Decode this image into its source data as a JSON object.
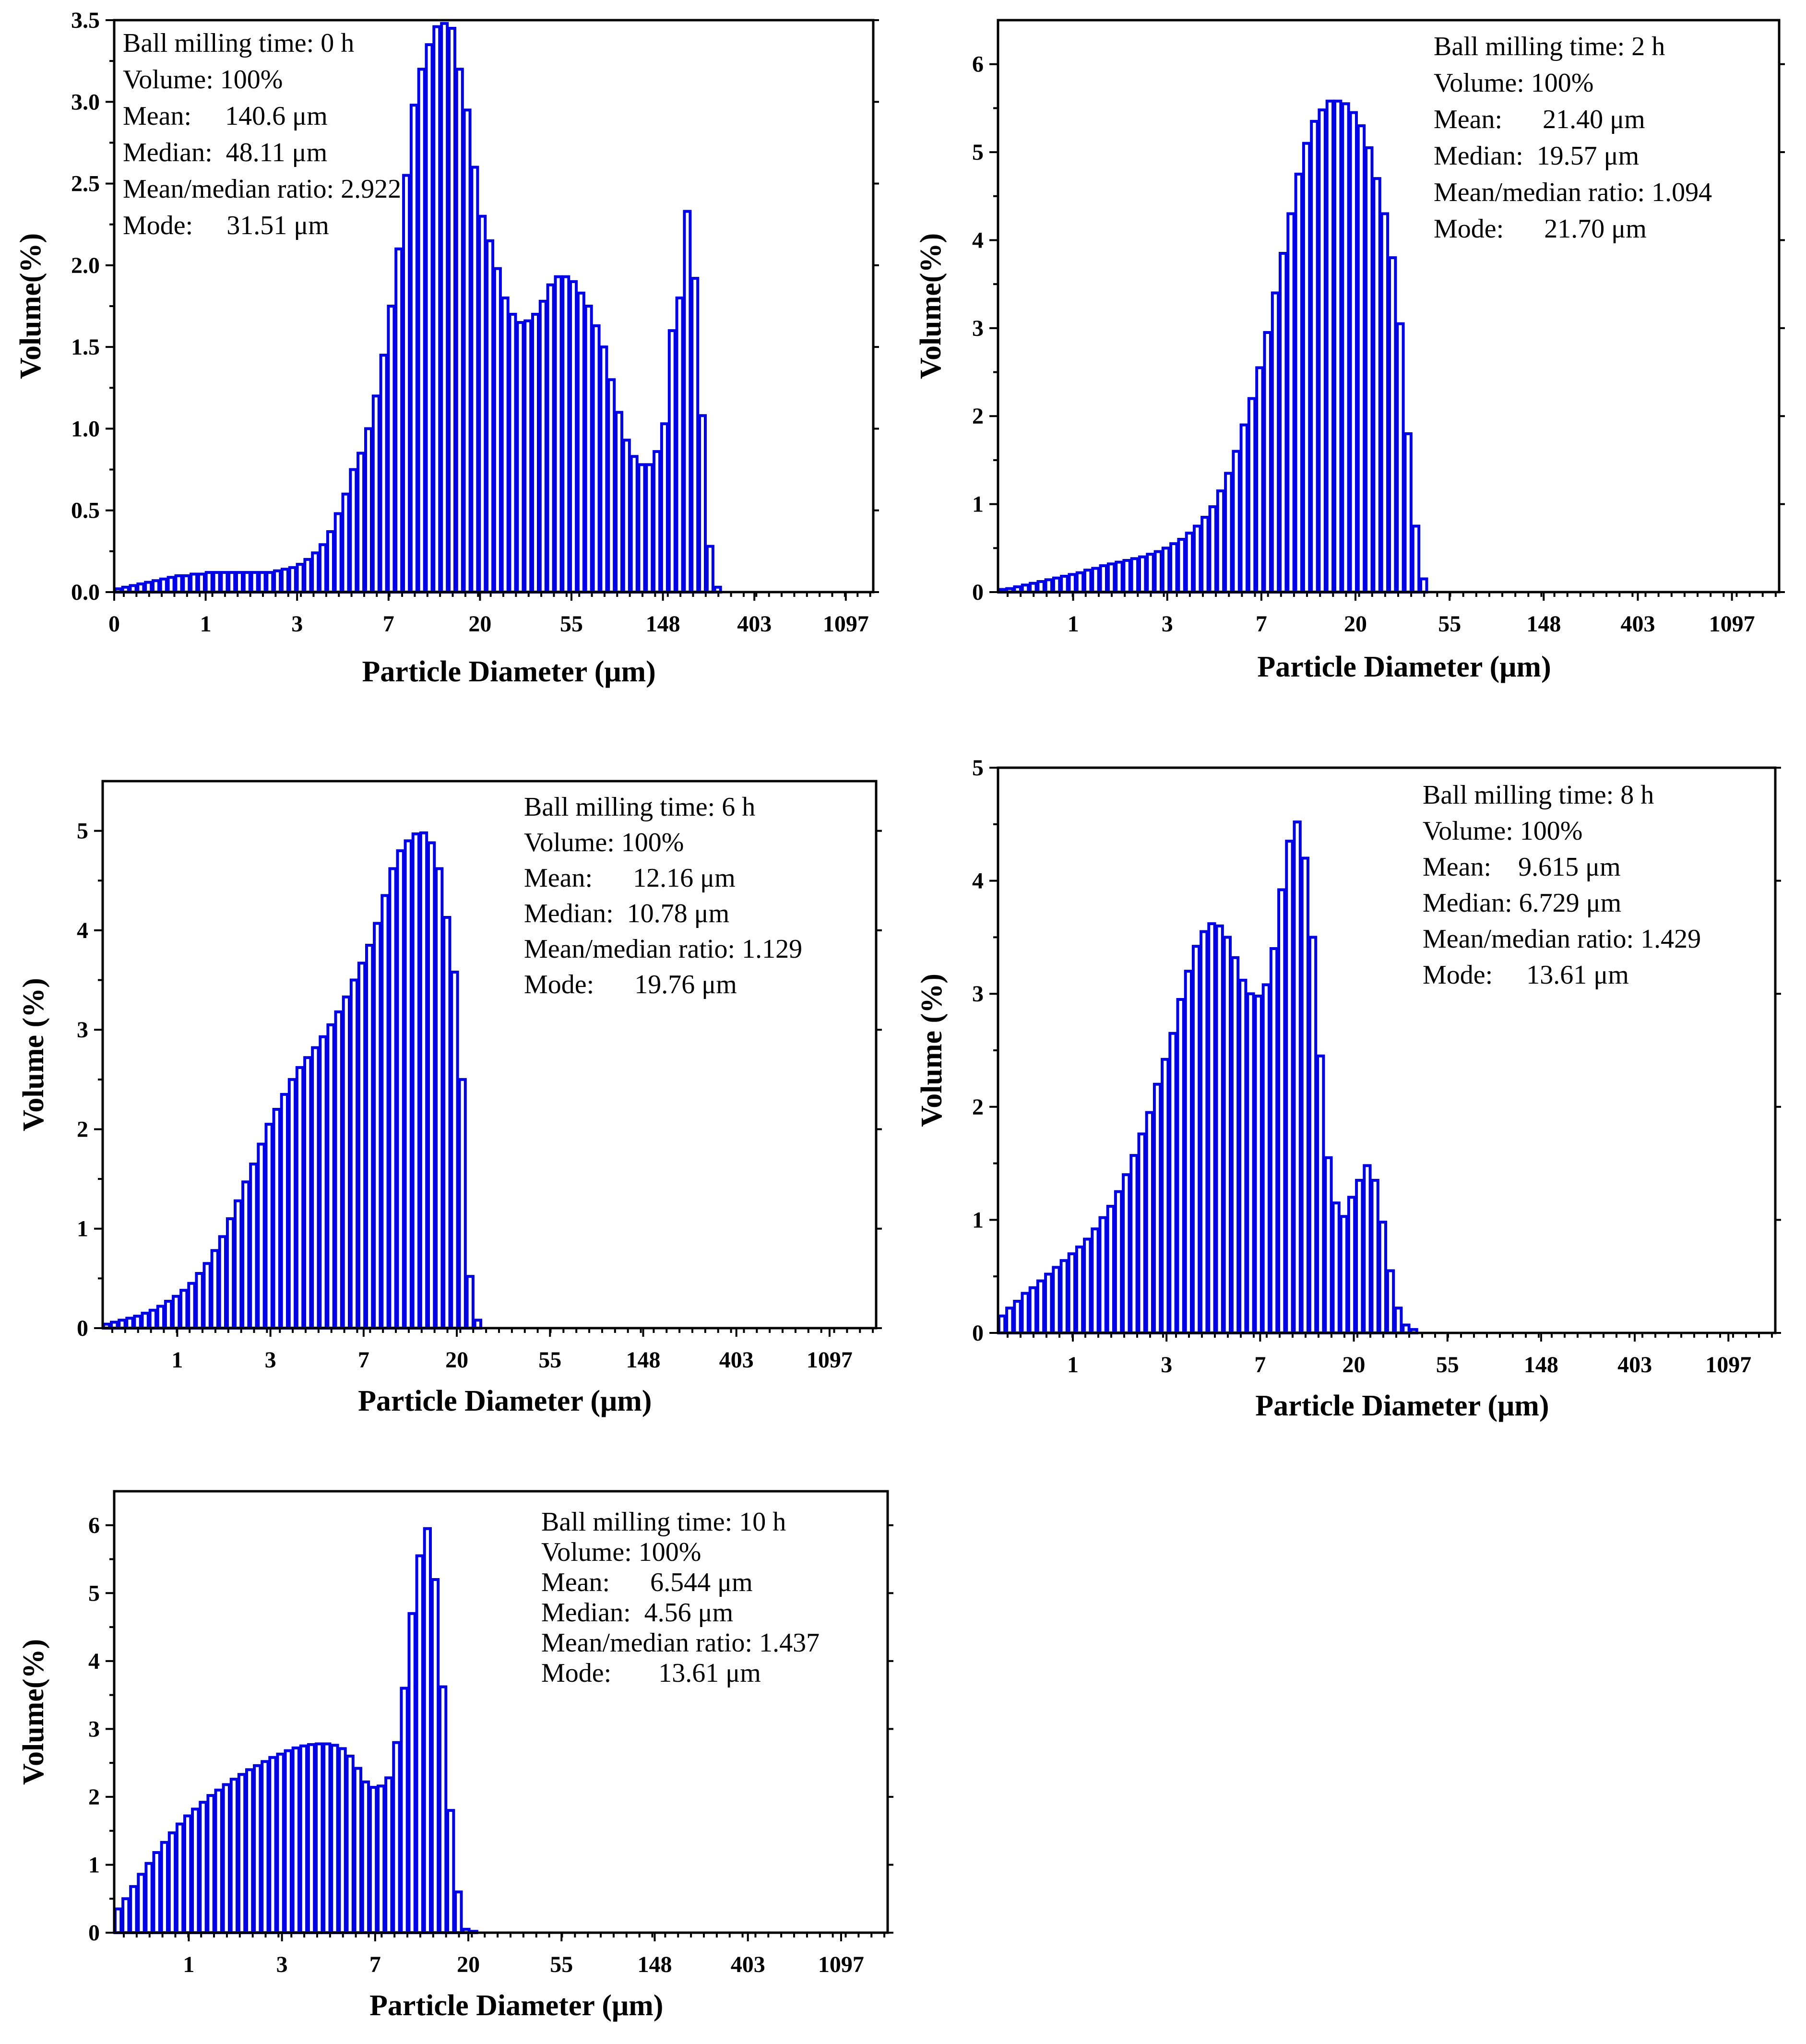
{
  "colors": {
    "bar_stroke": "#0000e6",
    "axes": "#000000",
    "background": "#ffffff"
  },
  "chart_data": [
    {
      "type": "bar",
      "id": "p0",
      "xlabel": "Particle Diameter (μm)",
      "ylabel": "Volume(%)",
      "ylim": [
        0,
        3.5
      ],
      "yticks": [
        "0.0",
        "0.5",
        "1.0",
        "1.5",
        "2.0",
        "2.5",
        "3.0",
        "3.5"
      ],
      "xticks": [
        "0",
        "1",
        "3",
        "7",
        "20",
        "55",
        "148",
        "403",
        "1097"
      ],
      "bin_count": 100,
      "bin_values": [
        0.02,
        0.03,
        0.04,
        0.05,
        0.06,
        0.07,
        0.08,
        0.09,
        0.1,
        0.1,
        0.11,
        0.11,
        0.12,
        0.12,
        0.12,
        0.12,
        0.12,
        0.12,
        0.12,
        0.12,
        0.12,
        0.13,
        0.14,
        0.15,
        0.17,
        0.2,
        0.24,
        0.29,
        0.37,
        0.48,
        0.6,
        0.75,
        0.85,
        1.0,
        1.2,
        1.45,
        1.75,
        2.1,
        2.55,
        2.98,
        3.2,
        3.35,
        3.46,
        3.48,
        3.45,
        3.2,
        2.95,
        2.6,
        2.3,
        2.15,
        1.98,
        1.8,
        1.7,
        1.65,
        1.66,
        1.7,
        1.78,
        1.88,
        1.93,
        1.93,
        1.9,
        1.83,
        1.75,
        1.63,
        1.5,
        1.3,
        1.1,
        0.93,
        0.83,
        0.78,
        0.78,
        0.86,
        1.03,
        1.6,
        1.8,
        2.33,
        1.92,
        1.08,
        0.28,
        0.03,
        0,
        0,
        0,
        0,
        0,
        0,
        0,
        0,
        0,
        0,
        0,
        0,
        0,
        0,
        0,
        0,
        0,
        0,
        0,
        0
      ],
      "legend": [
        "Ball milling time: 0 h",
        "Volume: 100%",
        "Mean:     140.6 μm",
        "Median:  48.11 μm",
        "Mean/median ratio: 2.922",
        "Mode:     31.51 μm"
      ]
    },
    {
      "type": "bar",
      "id": "p2",
      "xlabel": "Particle Diameter (μm)",
      "ylabel": "Volume(%)",
      "ylim": [
        0,
        6.5
      ],
      "yticks": [
        "0",
        "1",
        "2",
        "3",
        "4",
        "5",
        "6"
      ],
      "xticks": [
        "1",
        "3",
        "7",
        "20",
        "55",
        "148",
        "403",
        "1097"
      ],
      "bin_count": 100,
      "bin_values": [
        0.03,
        0.04,
        0.06,
        0.08,
        0.1,
        0.12,
        0.14,
        0.16,
        0.18,
        0.2,
        0.22,
        0.25,
        0.27,
        0.3,
        0.32,
        0.34,
        0.36,
        0.38,
        0.4,
        0.43,
        0.46,
        0.5,
        0.55,
        0.6,
        0.67,
        0.75,
        0.85,
        0.97,
        1.15,
        1.35,
        1.6,
        1.9,
        2.2,
        2.55,
        2.95,
        3.4,
        3.85,
        4.3,
        4.75,
        5.1,
        5.35,
        5.48,
        5.58,
        5.58,
        5.55,
        5.45,
        5.3,
        5.05,
        4.7,
        4.3,
        3.8,
        3.05,
        1.8,
        0.75,
        0.15,
        0,
        0,
        0,
        0,
        0,
        0,
        0,
        0,
        0,
        0,
        0,
        0,
        0,
        0,
        0,
        0,
        0,
        0,
        0,
        0,
        0,
        0,
        0,
        0,
        0,
        0,
        0,
        0,
        0,
        0,
        0,
        0,
        0,
        0,
        0,
        0,
        0,
        0,
        0,
        0,
        0,
        0,
        0,
        0,
        0
      ],
      "legend": [
        "Ball milling time: 2 h",
        "Volume: 100%",
        "Mean:      21.40 μm",
        "Median:  19.57 μm",
        "Mean/median ratio: 1.094",
        "Mode:      21.70 μm"
      ]
    },
    {
      "type": "bar",
      "id": "p6",
      "xlabel": "Particle Diameter (μm)",
      "ylabel": "Volume (%)",
      "ylim": [
        0,
        5.5
      ],
      "yticks": [
        "0",
        "1",
        "2",
        "3",
        "4",
        "5"
      ],
      "xticks": [
        "1",
        "3",
        "7",
        "20",
        "55",
        "148",
        "403",
        "1097"
      ],
      "bin_count": 100,
      "bin_values": [
        0.04,
        0.06,
        0.08,
        0.1,
        0.12,
        0.15,
        0.18,
        0.22,
        0.27,
        0.32,
        0.38,
        0.45,
        0.55,
        0.65,
        0.78,
        0.92,
        1.1,
        1.28,
        1.47,
        1.65,
        1.85,
        2.05,
        2.2,
        2.35,
        2.5,
        2.62,
        2.72,
        2.82,
        2.93,
        3.05,
        3.18,
        3.33,
        3.5,
        3.67,
        3.85,
        4.07,
        4.35,
        4.62,
        4.8,
        4.9,
        4.97,
        4.98,
        4.88,
        4.62,
        4.13,
        3.58,
        2.5,
        0.52,
        0.08,
        0,
        0,
        0,
        0,
        0,
        0,
        0,
        0,
        0,
        0,
        0,
        0,
        0,
        0,
        0,
        0,
        0,
        0,
        0,
        0,
        0,
        0,
        0,
        0,
        0,
        0,
        0,
        0,
        0,
        0,
        0,
        0,
        0,
        0,
        0,
        0,
        0,
        0,
        0,
        0,
        0,
        0,
        0,
        0,
        0,
        0,
        0,
        0,
        0,
        0,
        0
      ],
      "legend": [
        "Ball milling time: 6 h",
        "Volume: 100%",
        "Mean:      12.16 μm",
        "Median:  10.78 μm",
        "Mean/median ratio: 1.129",
        "Mode:      19.76 μm"
      ]
    },
    {
      "type": "bar",
      "id": "p8",
      "xlabel": "Particle Diameter (μm)",
      "ylabel": "Volume (%)",
      "ylim": [
        0,
        5
      ],
      "yticks": [
        "0",
        "1",
        "2",
        "3",
        "4",
        "5"
      ],
      "xticks": [
        "1",
        "3",
        "7",
        "20",
        "55",
        "148",
        "403",
        "1097"
      ],
      "bin_count": 100,
      "bin_values": [
        0.15,
        0.22,
        0.28,
        0.35,
        0.4,
        0.46,
        0.52,
        0.58,
        0.64,
        0.7,
        0.76,
        0.83,
        0.92,
        1.02,
        1.12,
        1.25,
        1.4,
        1.57,
        1.76,
        1.95,
        2.2,
        2.42,
        2.65,
        2.95,
        3.2,
        3.42,
        3.55,
        3.62,
        3.6,
        3.5,
        3.32,
        3.12,
        3.0,
        2.98,
        3.08,
        3.4,
        3.92,
        4.35,
        4.52,
        4.2,
        3.5,
        2.45,
        1.55,
        1.15,
        1.03,
        1.2,
        1.35,
        1.48,
        1.35,
        0.98,
        0.55,
        0.22,
        0.07,
        0.03,
        0,
        0,
        0,
        0,
        0,
        0,
        0,
        0,
        0,
        0,
        0,
        0,
        0,
        0,
        0,
        0,
        0,
        0,
        0,
        0,
        0,
        0,
        0,
        0,
        0,
        0,
        0,
        0,
        0,
        0,
        0,
        0,
        0,
        0,
        0,
        0,
        0,
        0,
        0,
        0,
        0,
        0,
        0,
        0,
        0,
        0
      ],
      "legend": [
        "Ball milling time: 8 h",
        "Volume: 100%",
        "Mean:    9.615 μm",
        "Median: 6.729 μm",
        "Mean/median ratio: 1.429",
        "Mode:     13.61 μm"
      ]
    },
    {
      "type": "bar",
      "id": "p10",
      "xlabel": "Particle Diameter (μm)",
      "ylabel": "Volume(%)",
      "ylim": [
        0,
        6.5
      ],
      "yticks": [
        "0",
        "1",
        "2",
        "3",
        "4",
        "5",
        "6"
      ],
      "xticks": [
        "1",
        "3",
        "7",
        "20",
        "55",
        "148",
        "403",
        "1097"
      ],
      "bin_count": 100,
      "bin_values": [
        0.35,
        0.5,
        0.68,
        0.86,
        1.02,
        1.18,
        1.33,
        1.47,
        1.6,
        1.72,
        1.82,
        1.92,
        2.02,
        2.1,
        2.18,
        2.26,
        2.33,
        2.4,
        2.46,
        2.52,
        2.58,
        2.63,
        2.68,
        2.72,
        2.75,
        2.77,
        2.78,
        2.78,
        2.76,
        2.71,
        2.6,
        2.42,
        2.22,
        2.14,
        2.16,
        2.28,
        2.8,
        3.6,
        4.7,
        5.55,
        5.95,
        5.2,
        3.62,
        1.8,
        0.6,
        0.05,
        0.02,
        0,
        0,
        0,
        0,
        0,
        0,
        0,
        0,
        0,
        0,
        0,
        0,
        0,
        0,
        0,
        0,
        0,
        0,
        0,
        0,
        0,
        0,
        0,
        0,
        0,
        0,
        0,
        0,
        0,
        0,
        0,
        0,
        0,
        0,
        0,
        0,
        0,
        0,
        0,
        0,
        0,
        0,
        0,
        0,
        0,
        0,
        0,
        0,
        0,
        0,
        0,
        0,
        0
      ],
      "legend": [
        "Ball milling time: 10 h",
        "Volume: 100%",
        "Mean:      6.544 μm",
        "Median:  4.56 μm",
        "Mean/median ratio: 1.437",
        "Mode:       13.61 μm"
      ]
    }
  ]
}
